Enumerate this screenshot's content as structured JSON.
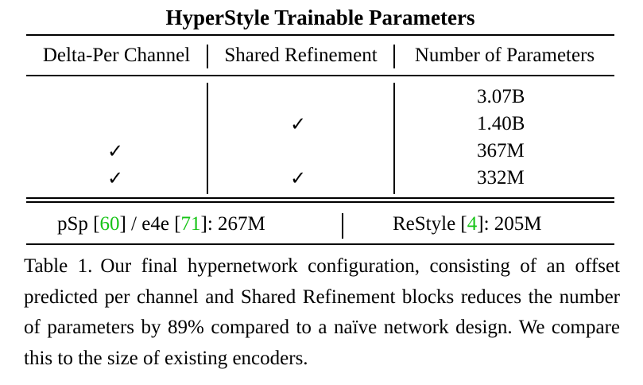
{
  "table": {
    "title": "HyperStyle Trainable Parameters",
    "headers": [
      "Delta-Per Channel",
      "Shared Refinement",
      "Number of Parameters"
    ],
    "check_glyph": "✓",
    "rows": [
      {
        "delta_per_channel": false,
        "shared_refinement": false,
        "params": "3.07B"
      },
      {
        "delta_per_channel": false,
        "shared_refinement": true,
        "params": "1.40B"
      },
      {
        "delta_per_channel": true,
        "shared_refinement": false,
        "params": "367M"
      },
      {
        "delta_per_channel": true,
        "shared_refinement": true,
        "params": "332M"
      }
    ],
    "footer": {
      "psp_label": "pSp [",
      "psp_ref": "60",
      "mid_sep": "] / e4e [",
      "e4e_ref": "71",
      "psp_e4e_value": "]: 267M",
      "restyle_label": "ReStyle [",
      "restyle_ref": "4",
      "restyle_value": "]: 205M"
    },
    "cite_color": "#17c417"
  },
  "caption": {
    "label": "Table 1.",
    "text": "Our final hypernetwork configuration, consisting of an offset predicted per channel and Shared Refinement blocks reduces the number of parameters by 89% compared to a naïve network design. We compare this to the size of existing encoders."
  }
}
